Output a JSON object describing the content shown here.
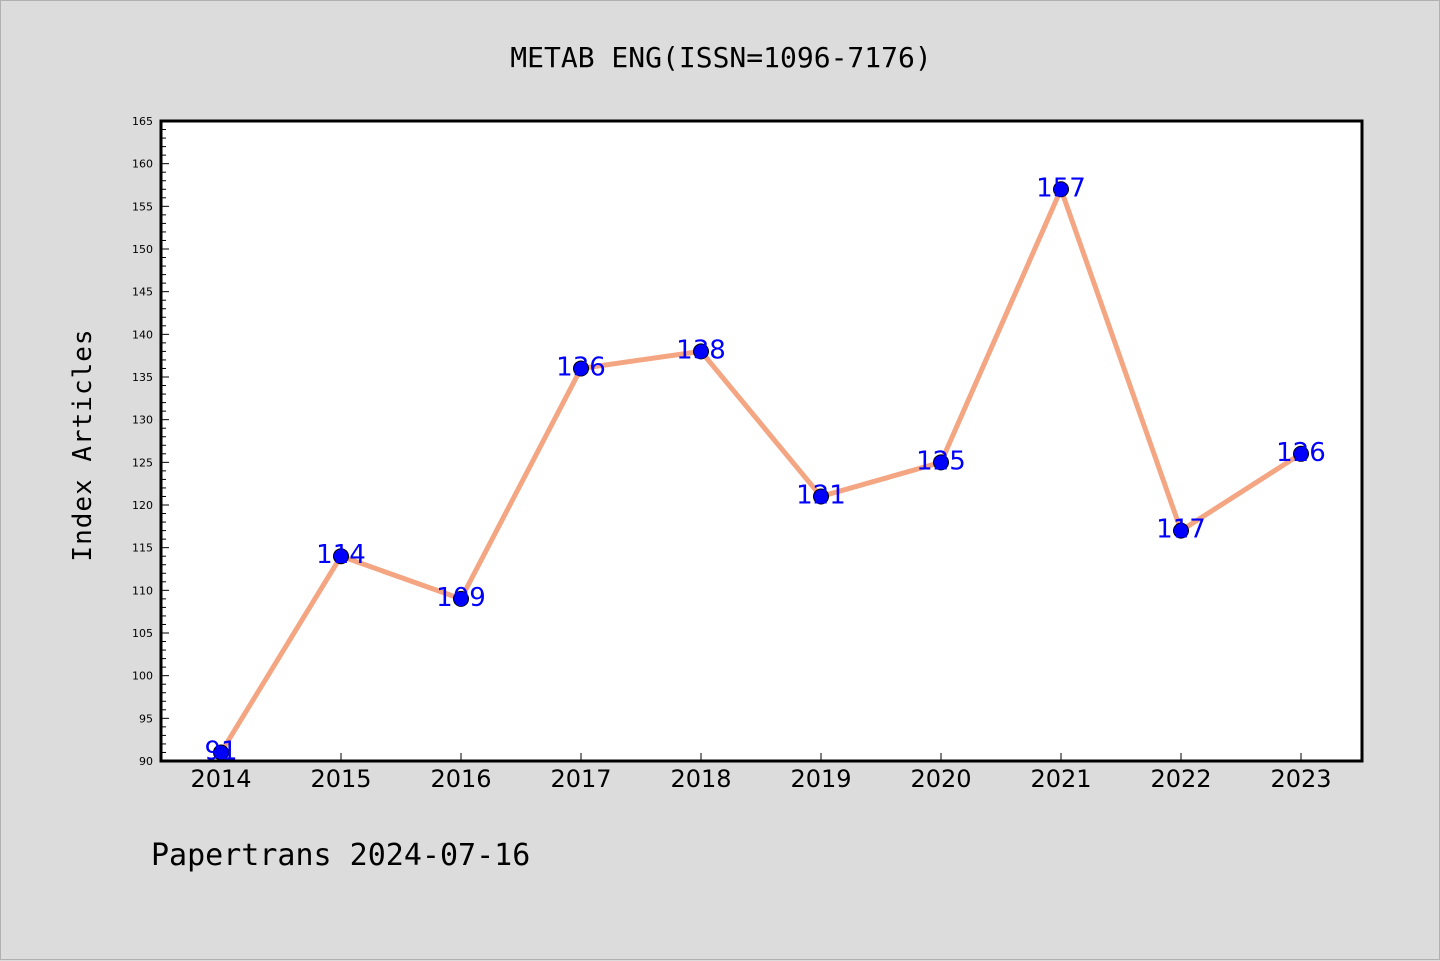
{
  "chart_data": {
    "type": "line",
    "title": "METAB ENG(ISSN=1096-7176)",
    "ylabel": "Index Articles",
    "xlabel": "",
    "x": [
      "2014",
      "2015",
      "2016",
      "2017",
      "2018",
      "2019",
      "2020",
      "2021",
      "2022",
      "2023"
    ],
    "series": [
      {
        "values": [
          91,
          114,
          109,
          136,
          138,
          121,
          125,
          157,
          117,
          126
        ],
        "line_color": "#f4a582",
        "marker_color": "#0000ff"
      }
    ],
    "data_labels": [
      "91",
      "114",
      "109",
      "136",
      "138",
      "121",
      "125",
      "157",
      "117",
      "126"
    ],
    "ylim": [
      90,
      165
    ],
    "yticks": [
      "90",
      "95",
      "100",
      "105",
      "110",
      "115",
      "120",
      "125",
      "130",
      "135",
      "140",
      "145",
      "150",
      "155",
      "160",
      "165"
    ],
    "y_minor_step": 1,
    "grid": false,
    "legend": "none"
  },
  "footer": {
    "text": "Papertrans 2024-07-16"
  },
  "colors": {
    "background": "#dcdcdc",
    "plot_background": "#ffffff",
    "line": "#f4a582",
    "marker": "#0000ff",
    "label": "#0000ff"
  }
}
